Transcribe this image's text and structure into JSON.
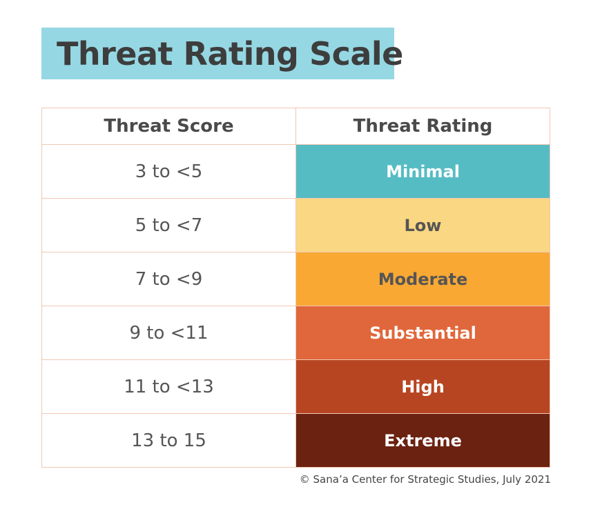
{
  "title": "Threat Rating Scale",
  "table": {
    "headers": {
      "score": "Threat Score",
      "rating": "Threat Rating"
    },
    "rows": [
      {
        "score": "3 to <5",
        "rating": "Minimal",
        "bg": "#56bcc4",
        "fg": "#ffffff"
      },
      {
        "score": "5 to <7",
        "rating": "Low",
        "bg": "#fad782",
        "fg": "#555555"
      },
      {
        "score": "7 to <9",
        "rating": "Moderate",
        "bg": "#f9a833",
        "fg": "#555555"
      },
      {
        "score": "9 to <11",
        "rating": "Substantial",
        "bg": "#e0673b",
        "fg": "#ffffff"
      },
      {
        "score": "11 to <13",
        "rating": "High",
        "bg": "#b84522",
        "fg": "#ffffff"
      },
      {
        "score": "13 to 15",
        "rating": "Extreme",
        "bg": "#6b2210",
        "fg": "#ffffff"
      }
    ]
  },
  "footer": "© Sana’a Center for Strategic Studies, July 2021",
  "colors": {
    "title_bg": "#95d8e3",
    "title_text": "#3d3d3d",
    "grid_line": "#f2c7b5"
  }
}
